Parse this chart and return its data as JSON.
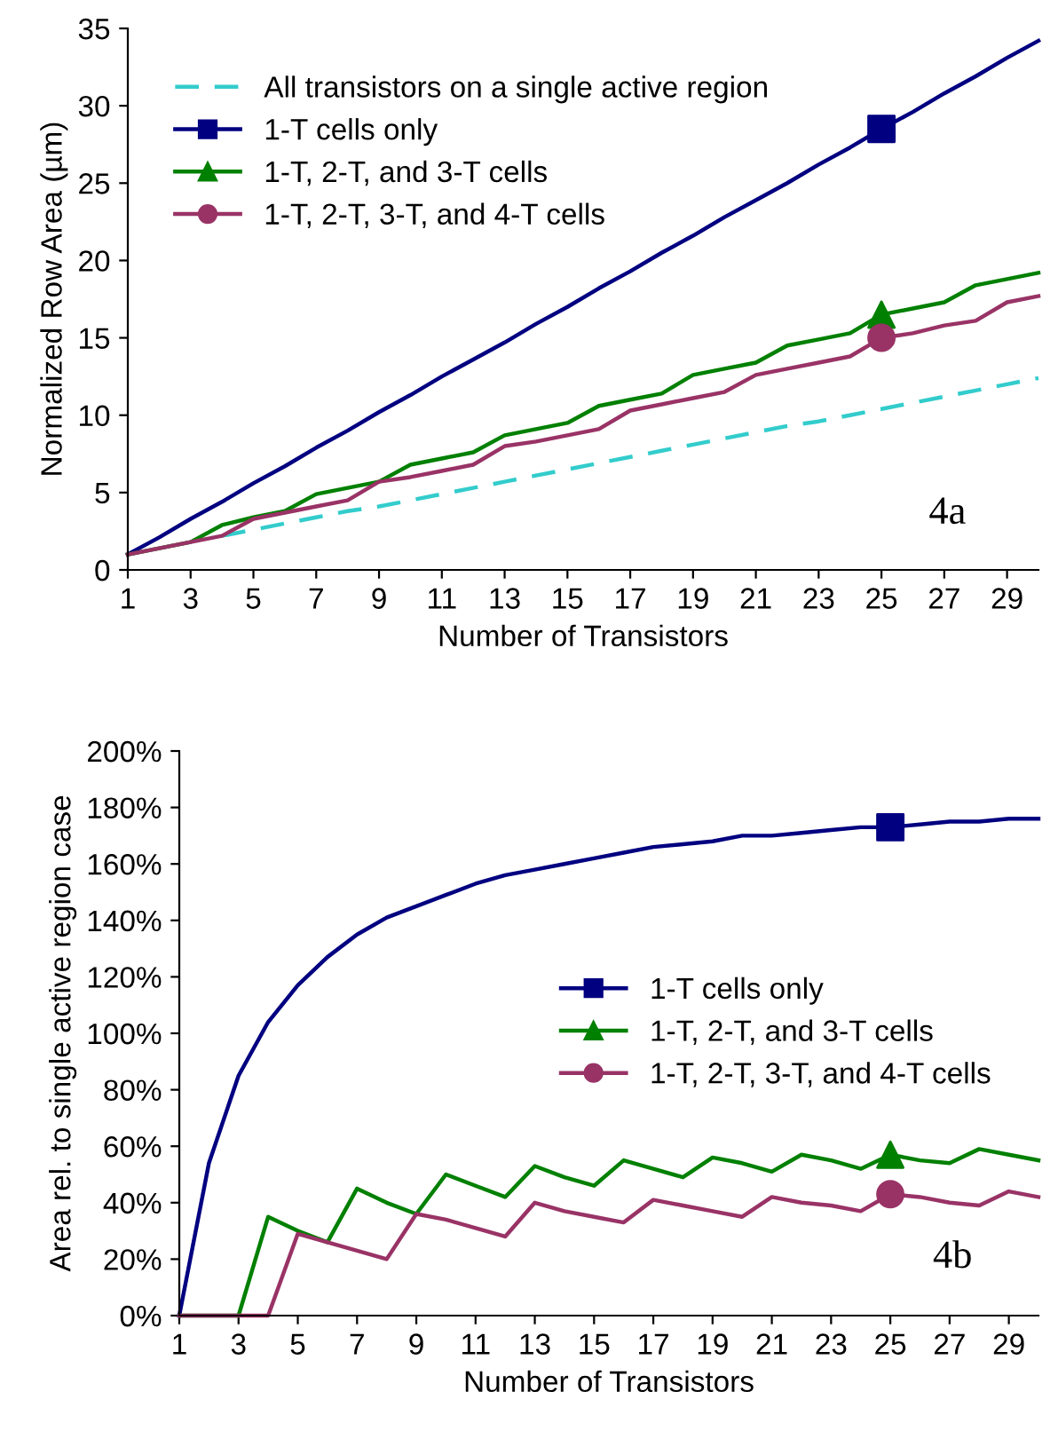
{
  "chart_data": [
    {
      "type": "line",
      "xlabel": "Number of Transistors",
      "ylabel": "Normalized Row Area (µm)",
      "annotations": [
        "4a"
      ],
      "x": [
        1,
        2,
        3,
        4,
        5,
        6,
        7,
        8,
        9,
        10,
        11,
        12,
        13,
        14,
        15,
        16,
        17,
        18,
        19,
        20,
        21,
        22,
        23,
        24,
        25,
        26,
        27,
        28,
        29,
        30
      ],
      "xlim": [
        1,
        30
      ],
      "xticks": [
        1,
        3,
        5,
        7,
        9,
        11,
        13,
        15,
        17,
        19,
        21,
        23,
        25,
        27,
        29
      ],
      "ylim": [
        0,
        35
      ],
      "yticks": [
        0,
        5,
        10,
        15,
        20,
        25,
        30,
        35
      ],
      "grid": false,
      "legend": "top left",
      "series": [
        {
          "name": "All transistors on a single active region",
          "color": "#33cccc",
          "line_style": "dashed",
          "values": [
            null,
            null,
            null,
            2.2,
            2.6,
            3.0,
            3.4,
            3.8,
            4.1,
            4.5,
            4.9,
            5.3,
            5.7,
            6.1,
            6.5,
            6.9,
            7.3,
            7.7,
            8.1,
            8.5,
            8.9,
            9.3,
            9.6,
            10.0,
            10.4,
            10.8,
            11.2,
            11.6,
            12.0,
            12.4
          ]
        },
        {
          "name": "1-T cells only",
          "color": "#000080",
          "line_style": "solid",
          "values": [
            1.0,
            2.1,
            3.3,
            4.4,
            5.6,
            6.7,
            7.9,
            9.0,
            10.2,
            11.3,
            12.5,
            13.6,
            14.7,
            15.9,
            17.0,
            18.2,
            19.3,
            20.5,
            21.6,
            22.8,
            23.9,
            25.0,
            26.2,
            27.3,
            28.5,
            29.6,
            30.8,
            31.9,
            33.1,
            34.2
          ]
        },
        {
          "name": "1-T, 2-T, and 3-T cells",
          "color": "#008000",
          "line_style": "solid",
          "values": [
            1.0,
            1.4,
            1.8,
            2.9,
            3.4,
            3.8,
            4.9,
            5.3,
            5.7,
            6.8,
            7.2,
            7.6,
            8.7,
            9.1,
            9.5,
            10.6,
            11.0,
            11.4,
            12.6,
            13.0,
            13.4,
            14.5,
            14.9,
            15.3,
            16.5,
            16.9,
            17.3,
            18.4,
            18.8,
            19.2
          ]
        },
        {
          "name": "1-T, 2-T, 3-T, and 4-T cells",
          "color": "#993366",
          "line_style": "solid",
          "values": [
            1.0,
            1.4,
            1.8,
            2.2,
            3.3,
            3.7,
            4.1,
            4.5,
            5.7,
            6.0,
            6.4,
            6.8,
            8.0,
            8.3,
            8.7,
            9.1,
            10.3,
            10.7,
            11.1,
            11.5,
            12.6,
            13.0,
            13.4,
            13.8,
            15.0,
            15.3,
            15.8,
            16.1,
            17.3,
            17.7
          ]
        },
        {
          "type": "scatter",
          "color": "#000080",
          "marker": "square",
          "values": [
            null,
            null,
            null,
            null,
            null,
            null,
            null,
            null,
            null,
            null,
            null,
            null,
            null,
            null,
            null,
            null,
            null,
            null,
            null,
            null,
            null,
            null,
            null,
            null,
            28.5,
            null,
            null,
            null,
            null,
            null
          ]
        },
        {
          "type": "scatter",
          "color": "#008000",
          "marker": "triangle",
          "values": [
            null,
            null,
            null,
            null,
            null,
            null,
            null,
            null,
            null,
            null,
            null,
            null,
            null,
            null,
            null,
            null,
            null,
            null,
            null,
            null,
            null,
            null,
            null,
            null,
            16.5,
            null,
            null,
            null,
            null,
            null
          ]
        },
        {
          "type": "scatter",
          "color": "#993366",
          "marker": "circle",
          "values": [
            null,
            null,
            null,
            null,
            null,
            null,
            null,
            null,
            null,
            null,
            null,
            null,
            null,
            null,
            null,
            null,
            null,
            null,
            null,
            null,
            null,
            null,
            null,
            null,
            15.0,
            null,
            null,
            null,
            null,
            null
          ]
        }
      ]
    },
    {
      "type": "line",
      "xlabel": "Number of Transistors",
      "ylabel": "Area rel. to single active region case",
      "annotations": [
        "4b"
      ],
      "x": [
        1,
        2,
        3,
        4,
        5,
        6,
        7,
        8,
        9,
        10,
        11,
        12,
        13,
        14,
        15,
        16,
        17,
        18,
        19,
        20,
        21,
        22,
        23,
        24,
        25,
        26,
        27,
        28,
        29,
        30
      ],
      "xlim": [
        1,
        30
      ],
      "xticks": [
        1,
        3,
        5,
        7,
        9,
        11,
        13,
        15,
        17,
        19,
        21,
        23,
        25,
        27,
        29
      ],
      "ylim": [
        0,
        200
      ],
      "yticks": [
        {
          "value": 0,
          "label": "0%"
        },
        {
          "value": 20,
          "label": "20%"
        },
        {
          "value": 40,
          "label": "40%"
        },
        {
          "value": 60,
          "label": "60%"
        },
        {
          "value": 80,
          "label": "80%"
        },
        {
          "value": 100,
          "label": "100%"
        },
        {
          "value": 120,
          "label": "120%"
        },
        {
          "value": 140,
          "label": "140%"
        },
        {
          "value": 160,
          "label": "160%"
        },
        {
          "value": 180,
          "label": "180%"
        },
        {
          "value": 200,
          "label": "200%"
        }
      ],
      "grid": false,
      "legend": "right",
      "series": [
        {
          "name": "1-T cells only",
          "color": "#000080",
          "line_style": "solid",
          "values": [
            0,
            54,
            85,
            104,
            117,
            127,
            135,
            141,
            145,
            149,
            153,
            156,
            158,
            160,
            162,
            164,
            166,
            167,
            168,
            170,
            170,
            171,
            172,
            173,
            173,
            174,
            175,
            175,
            176,
            176
          ]
        },
        {
          "name": "1-T, 2-T, and 3-T cells",
          "color": "#008000",
          "line_style": "solid",
          "values": [
            0,
            0,
            0,
            35,
            30,
            26,
            45,
            40,
            36,
            50,
            46,
            42,
            53,
            49,
            46,
            55,
            52,
            49,
            56,
            54,
            51,
            57,
            55,
            52,
            57,
            55,
            54,
            59,
            57,
            55
          ]
        },
        {
          "name": "1-T, 2-T, 3-T, and 4-T cells",
          "color": "#993366",
          "line_style": "solid",
          "values": [
            0,
            0,
            0,
            0,
            29,
            26,
            23,
            20,
            36,
            34,
            31,
            28,
            40,
            37,
            35,
            33,
            41,
            39,
            37,
            35,
            42,
            40,
            39,
            37,
            43,
            42,
            40,
            39,
            44,
            42
          ]
        },
        {
          "type": "scatter",
          "color": "#000080",
          "marker": "square",
          "values": [
            null,
            null,
            null,
            null,
            null,
            null,
            null,
            null,
            null,
            null,
            null,
            null,
            null,
            null,
            null,
            null,
            null,
            null,
            null,
            null,
            null,
            null,
            null,
            null,
            173,
            null,
            null,
            null,
            null,
            null
          ]
        },
        {
          "type": "scatter",
          "color": "#008000",
          "marker": "triangle",
          "values": [
            null,
            null,
            null,
            null,
            null,
            null,
            null,
            null,
            null,
            null,
            null,
            null,
            null,
            null,
            null,
            null,
            null,
            null,
            null,
            null,
            null,
            null,
            null,
            null,
            57,
            null,
            null,
            null,
            null,
            null
          ]
        },
        {
          "type": "scatter",
          "color": "#993366",
          "marker": "circle",
          "values": [
            null,
            null,
            null,
            null,
            null,
            null,
            null,
            null,
            null,
            null,
            null,
            null,
            null,
            null,
            null,
            null,
            null,
            null,
            null,
            null,
            null,
            null,
            null,
            null,
            43,
            null,
            null,
            null,
            null,
            null
          ]
        }
      ]
    }
  ]
}
